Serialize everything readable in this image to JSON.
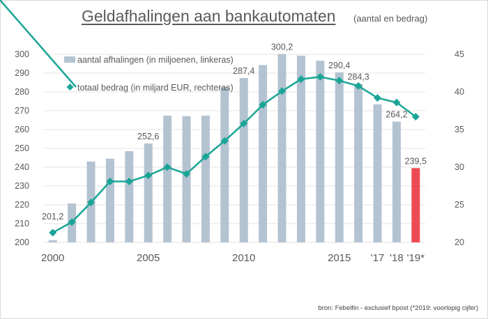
{
  "header": {
    "title": "Geldafhalingen aan bankautomaten",
    "subtitle": "(aantal en bedrag)"
  },
  "source": "bron: Febelfin - exclusief bpost (*2019: voorlopig cijfer)",
  "colors": {
    "bar": "#b4c3d1",
    "bar_highlight": "#ee4a55",
    "line": "#1aa596",
    "grid": "#e3e3e3",
    "text": "#595959"
  },
  "chart_data": {
    "type": "bar+line",
    "title": "Geldafhalingen aan bankautomaten (aantal en bedrag)",
    "categories": [
      "2000",
      "2001",
      "2002",
      "2003",
      "2004",
      "2005",
      "2006",
      "2007",
      "2008",
      "2009",
      "2010",
      "2011",
      "2012",
      "2013",
      "2014",
      "2015",
      "2016",
      "2017",
      "2018",
      "2019"
    ],
    "x_tick_labels": [
      {
        "index": 0,
        "label": "2000"
      },
      {
        "index": 5,
        "label": "2005"
      },
      {
        "index": 10,
        "label": "2010"
      },
      {
        "index": 15,
        "label": "2015"
      },
      {
        "index": 17,
        "label": "'17"
      },
      {
        "index": 18,
        "label": "'18"
      },
      {
        "index": 19,
        "label": "'19*"
      }
    ],
    "series": [
      {
        "name": "aantal afhalingen (in miljoenen, linkeras)",
        "type": "bar",
        "axis": "left",
        "values": [
          201.2,
          220.7,
          243.0,
          244.5,
          248.5,
          252.6,
          267.4,
          267.1,
          267.4,
          282.6,
          287.4,
          294.3,
          300.2,
          299.3,
          296.6,
          290.4,
          284.3,
          273.4,
          264.2,
          239.5
        ],
        "highlight_index": 19,
        "data_labels": [
          {
            "index": 0,
            "label": "201,2"
          },
          {
            "index": 5,
            "label": "252,6"
          },
          {
            "index": 10,
            "label": "287,4"
          },
          {
            "index": 12,
            "label": "300,2"
          },
          {
            "index": 15,
            "label": "290,4"
          },
          {
            "index": 16,
            "label": "284,3"
          },
          {
            "index": 18,
            "label": "264,2"
          },
          {
            "index": 19,
            "label": "239,5"
          }
        ]
      },
      {
        "name": "totaal bedrag (in miljard EUR, rechteras)",
        "type": "line",
        "axis": "right",
        "marker": "diamond",
        "values": [
          21.3,
          22.7,
          25.3,
          28.1,
          28.1,
          28.9,
          30.0,
          29.1,
          31.4,
          33.5,
          35.8,
          38.3,
          40.1,
          41.7,
          42.0,
          41.5,
          40.8,
          39.2,
          38.6,
          36.7
        ]
      }
    ],
    "y_left": {
      "min": 200,
      "max": 300,
      "ticks": [
        200,
        210,
        220,
        230,
        240,
        250,
        260,
        270,
        280,
        290,
        300
      ]
    },
    "y_right": {
      "min": 20,
      "max": 45,
      "ticks": [
        20,
        25,
        30,
        35,
        40,
        45
      ]
    },
    "grid": true,
    "legend_placement": "top-left"
  }
}
